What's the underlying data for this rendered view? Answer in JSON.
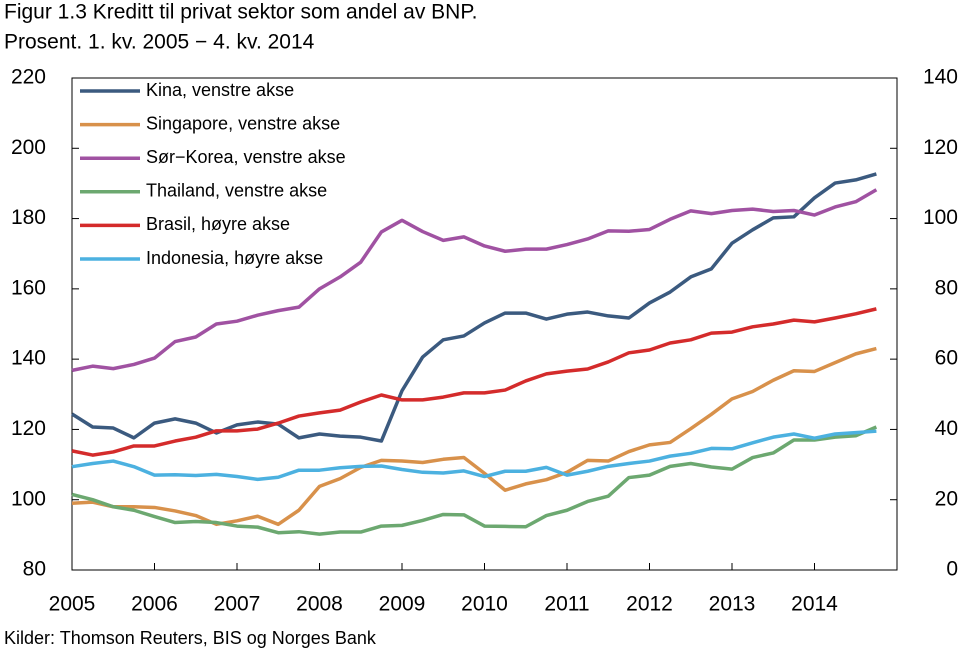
{
  "chart_data": {
    "type": "line",
    "title": "Figur 1.3 Kreditt til privat sektor som andel av BNP.",
    "subtitle": "Prosent. 1. kv. 2005 − 4. kv. 2014",
    "source": "Kilder: Thomson Reuters, BIS og Norges Bank",
    "x": [
      2005,
      2005.25,
      2005.5,
      2005.75,
      2006,
      2006.25,
      2006.5,
      2006.75,
      2007,
      2007.25,
      2007.5,
      2007.75,
      2008,
      2008.25,
      2008.5,
      2008.75,
      2009,
      2009.25,
      2009.5,
      2009.75,
      2010,
      2010.25,
      2010.5,
      2010.75,
      2011,
      2011.25,
      2011.5,
      2011.75,
      2012,
      2012.25,
      2012.5,
      2012.75,
      2013,
      2013.25,
      2013.5,
      2013.75,
      2014,
      2014.25,
      2014.5,
      2014.75
    ],
    "xlim": [
      2005,
      2015
    ],
    "xticks": [
      2005,
      2006,
      2007,
      2008,
      2009,
      2010,
      2011,
      2012,
      2013,
      2014
    ],
    "ylim": [
      80,
      220
    ],
    "yticks": [
      80,
      100,
      120,
      140,
      160,
      180,
      200,
      220
    ],
    "y2lim": [
      0,
      140
    ],
    "y2ticks": [
      0,
      20,
      40,
      60,
      80,
      100,
      120,
      140
    ],
    "grid": false,
    "legend": "upper left",
    "series": [
      {
        "name": "Kina, venstre akse",
        "color": "#3b5a7f",
        "values": [
          124.4,
          120.7,
          120.4,
          117.6,
          121.8,
          123,
          121.8,
          119,
          121.3,
          122.1,
          121.5,
          117.6,
          118.7,
          118.1,
          117.8,
          116.7,
          131,
          140.6,
          145.5,
          146.6,
          150.3,
          153.1,
          153.1,
          151.4,
          152.8,
          153.4,
          152.3,
          151.7,
          156,
          159.1,
          163.4,
          165.7,
          173,
          176.8,
          180.2,
          180.5,
          185.9,
          190.1,
          191,
          192.7
        ]
      },
      {
        "name": "Singapore, venstre akse",
        "color": "#d8914b",
        "values": [
          99,
          99.3,
          98,
          98,
          97.8,
          96.8,
          95.5,
          93,
          94,
          95.3,
          93,
          97,
          103.8,
          106,
          109.2,
          111.2,
          111,
          110.6,
          111.5,
          112,
          107.5,
          102.7,
          104.5,
          105.7,
          107.8,
          111.2,
          111,
          113.7,
          115.6,
          116.3,
          120.2,
          124.3,
          128.7,
          130.8,
          134,
          136.7,
          136.5,
          139,
          141.5,
          143
        ]
      },
      {
        "name": "Sør−Korea, venstre akse",
        "color": "#a052a2",
        "values": [
          136.8,
          138,
          137.3,
          138.5,
          140.3,
          145,
          146.3,
          150,
          150.8,
          152.5,
          153.8,
          154.8,
          160,
          163.4,
          167.6,
          176.2,
          179.5,
          176.3,
          173.8,
          174.8,
          172.2,
          170.7,
          171.3,
          171.3,
          172.6,
          174.2,
          176.5,
          176.4,
          176.9,
          179.8,
          182.2,
          181.4,
          182.3,
          182.7,
          182,
          182.3,
          181,
          183.3,
          184.8,
          188.2
        ]
      },
      {
        "name": "Thailand, venstre akse",
        "color": "#6ca870",
        "values": [
          101.5,
          100,
          98,
          97,
          95.2,
          93.5,
          93.8,
          93.5,
          92.5,
          92.2,
          90.6,
          90.9,
          90.2,
          90.8,
          90.8,
          92.5,
          92.7,
          94.1,
          95.8,
          95.7,
          92.5,
          92.4,
          92.3,
          95.5,
          97,
          99.5,
          101,
          106.3,
          107,
          109.5,
          110.3,
          109.3,
          108.7,
          112,
          113.3,
          117,
          117,
          117.8,
          118.2,
          120.7
        ]
      },
      {
        "name": "Brasil, høyre akse",
        "color": "#d42b2b",
        "axis": "y2",
        "values": [
          33.9,
          32.7,
          33.6,
          35.3,
          35.3,
          36.7,
          37.8,
          39.6,
          39.6,
          40.1,
          41.8,
          43.8,
          44.7,
          45.5,
          47.8,
          49.8,
          48.4,
          48.4,
          49.2,
          50.4,
          50.4,
          51.2,
          53.8,
          55.8,
          56.6,
          57.2,
          59.2,
          61.8,
          62.6,
          64.6,
          65.5,
          67.4,
          67.7,
          69.2,
          70,
          71.1,
          70.6,
          71.7,
          72.9,
          74.3
        ]
      },
      {
        "name": "Indonesia, høyre akse",
        "color": "#4cb1e0",
        "axis": "y2",
        "values": [
          29.4,
          30.3,
          31,
          29.4,
          27,
          27.1,
          26.9,
          27.2,
          26.6,
          25.8,
          26.4,
          28.4,
          28.4,
          29.1,
          29.5,
          29.6,
          28.6,
          27.8,
          27.6,
          28.2,
          26.6,
          28.1,
          28.1,
          29.2,
          27,
          28.1,
          29.5,
          30.3,
          31,
          32.4,
          33.2,
          34.6,
          34.5,
          36.2,
          37.8,
          38.7,
          37.5,
          38.7,
          39.1,
          39.5
        ]
      }
    ]
  }
}
